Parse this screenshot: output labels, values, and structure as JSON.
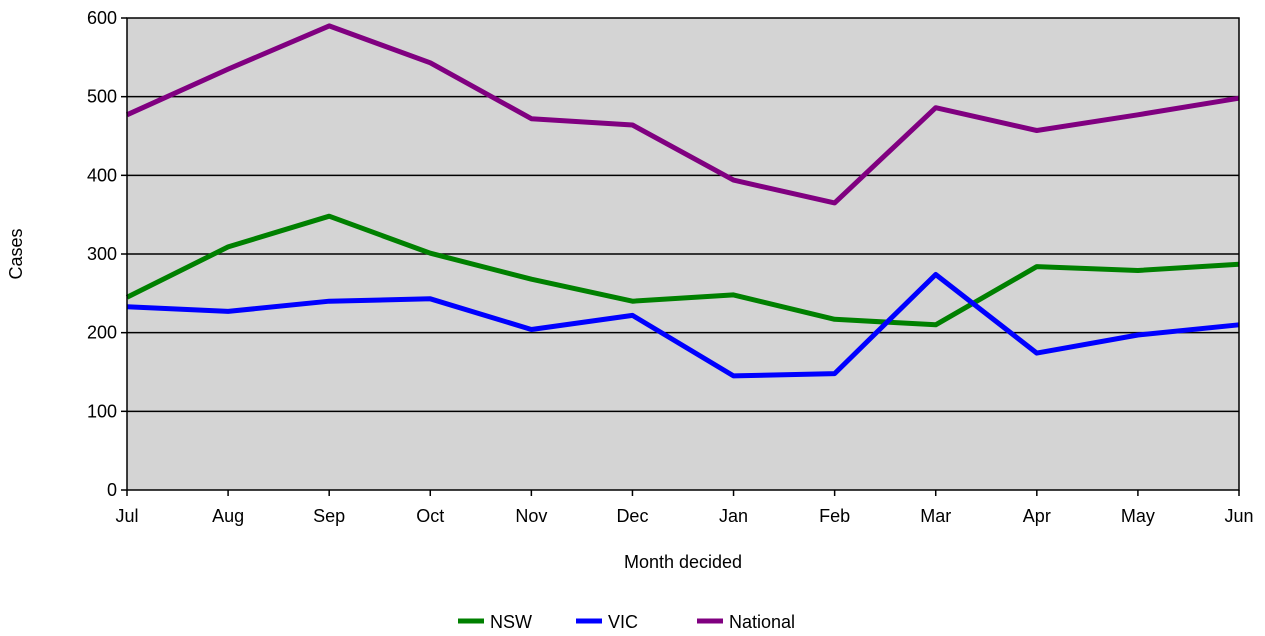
{
  "chart_data": {
    "type": "line",
    "title": "",
    "xlabel": "Month decided",
    "ylabel": "Cases",
    "categories": [
      "Jul",
      "Aug",
      "Sep",
      "Oct",
      "Nov",
      "Dec",
      "Jan",
      "Feb",
      "Mar",
      "Apr",
      "May",
      "Jun"
    ],
    "ylim": [
      0,
      600
    ],
    "yticks": [
      0,
      100,
      200,
      300,
      400,
      500,
      600
    ],
    "ytick_labels": [
      "0",
      "100",
      "200",
      "300",
      "400",
      "500",
      "600"
    ],
    "grid": "horizontal",
    "legend_position": "bottom",
    "plot_background": "#d4d4d4",
    "series": [
      {
        "name": "NSW",
        "color": "#008000",
        "values": [
          245,
          309,
          348,
          301,
          268,
          240,
          248,
          217,
          210,
          284,
          279,
          287
        ]
      },
      {
        "name": "VIC",
        "color": "#0000ff",
        "values": [
          233,
          227,
          240,
          243,
          204,
          222,
          145,
          148,
          274,
          174,
          197,
          210
        ]
      },
      {
        "name": "National",
        "color": "#800080",
        "values": [
          477,
          535,
          590,
          543,
          472,
          464,
          394,
          365,
          486,
          457,
          477,
          498
        ]
      }
    ]
  }
}
